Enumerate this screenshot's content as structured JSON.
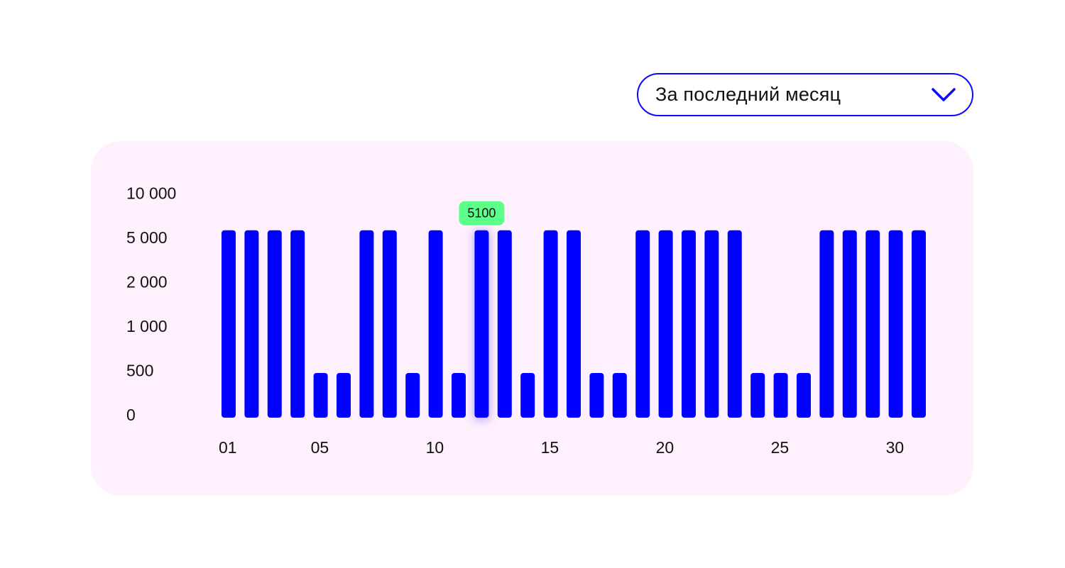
{
  "period_select": {
    "selected": "За последний месяц",
    "icon": "chevron-down-icon"
  },
  "colors": {
    "bar": "#0000ff",
    "card_background": "#fff0fd",
    "tooltip_background": "#5cff87",
    "select_border": "#0a0aff"
  },
  "chart_data": {
    "type": "bar",
    "y_scale": "categorical-ticks",
    "y_ticks": [
      "0",
      "500",
      "1 000",
      "2 000",
      "5 000",
      "10 000"
    ],
    "y_tick_values": [
      0,
      500,
      1000,
      2000,
      5000,
      10000
    ],
    "x_tick_labels": [
      "01",
      "05",
      "10",
      "15",
      "20",
      "25",
      "30"
    ],
    "x_tick_days": [
      1,
      5,
      10,
      15,
      20,
      25,
      30
    ],
    "categories": [
      1,
      2,
      3,
      4,
      5,
      6,
      7,
      8,
      9,
      10,
      11,
      12,
      13,
      14,
      15,
      16,
      17,
      18,
      19,
      20,
      21,
      22,
      23,
      24,
      25,
      26,
      27,
      28,
      29,
      30,
      31
    ],
    "values": [
      5100,
      5100,
      5100,
      5100,
      400,
      400,
      5100,
      5100,
      400,
      5100,
      400,
      5100,
      5100,
      400,
      5100,
      5100,
      400,
      400,
      5100,
      5100,
      5100,
      5100,
      5100,
      400,
      400,
      400,
      5100,
      5100,
      5100,
      5100,
      5100
    ],
    "highlighted_day": 12,
    "tooltip": "5100",
    "grid": false,
    "legend": "none"
  }
}
